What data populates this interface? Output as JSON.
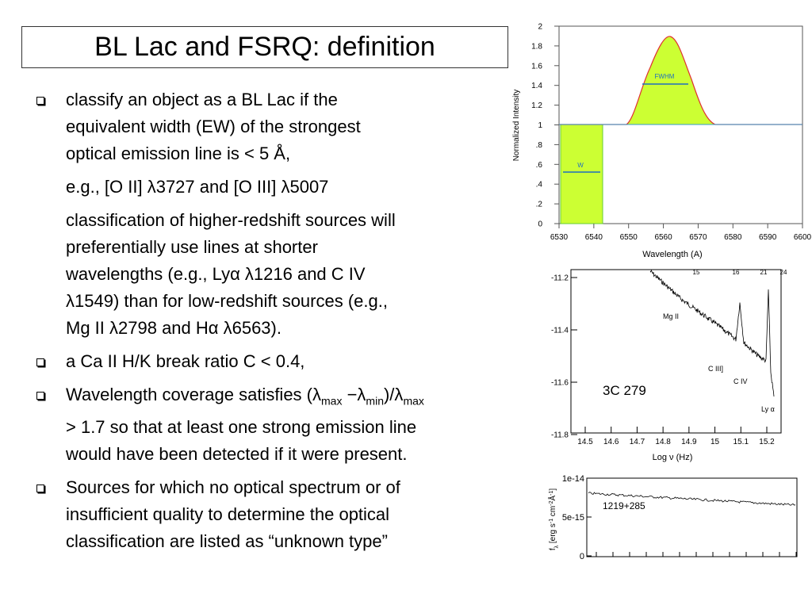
{
  "title": "BL Lac and FSRQ: definition",
  "bullets": [
    {
      "paragraphs": [
        [
          [
            "classify an object as a BL Lac if the"
          ],
          [
            "equivalent width (EW) of the strongest"
          ],
          [
            "optical emission line is < 5 Å,"
          ]
        ],
        [
          [
            "e.g.,  [O II] λ3727 and [O III] λ5007"
          ]
        ],
        [
          [
            "classification of higher-redshift sources will"
          ],
          [
            "preferentially use lines at shorter"
          ],
          [
            "wavelengths (e.g., Lyα λ1216 and C IV"
          ],
          [
            "λ1549) than for low-redshift sources (e.g.,"
          ],
          [
            "Mg II λ2798 and Hα λ6563)."
          ]
        ]
      ]
    },
    {
      "paragraphs": [
        [
          [
            "a Ca II H/K break ratio C < 0.4,"
          ]
        ]
      ]
    },
    {
      "paragraphs": [
        [
          [
            "Wavelength coverage satisfies (λ",
            {
              "sub": "max"
            },
            " −λ",
            {
              "sub": "min"
            },
            ")/λ",
            {
              "sub": "max"
            }
          ],
          [
            "> 1.7 so that at least one strong emission line"
          ],
          [
            "would have been detected if it were present."
          ]
        ]
      ]
    },
    {
      "paragraphs": [
        [
          [
            "Sources for which no optical spectrum or of"
          ],
          [
            "insufficient quality to determine the optical"
          ],
          [
            "classification are listed as “unknown type”"
          ]
        ]
      ]
    }
  ],
  "figures": [
    {
      "ylabel": "Normalized Intensity",
      "xlabel": "Wavelength (A)",
      "yticks": [
        2,
        1.8,
        1.6,
        1.4,
        1.2,
        1,
        {
          "value": 0.8,
          "label": ".8"
        },
        {
          "value": 0.6,
          "label": ".6"
        },
        {
          "value": 0.4,
          "label": ".4"
        },
        {
          "value": 0.2,
          "label": ".2"
        },
        0
      ],
      "xticks": [
        6530,
        6540,
        6550,
        6560,
        6570,
        6580,
        6590,
        6600
      ],
      "annotations": [
        "FWHM",
        "W"
      ]
    },
    {
      "xlabel": "Log ν (Hz)",
      "yticks": [
        -11.2,
        -11.4,
        -11.6,
        -11.8
      ],
      "xticks": [
        14.5,
        14.6,
        14.7,
        14.8,
        14.9,
        15,
        15.1,
        15.2
      ],
      "top_labels": [
        "15",
        "16",
        "21",
        "24"
      ],
      "annotations": [
        "Mg II",
        "C III]",
        "C IV",
        "Ly α"
      ],
      "name": "3C 279"
    },
    {
      "ylabel": [
        "f",
        {
          "sub": "λ"
        },
        " [erg s",
        {
          "sup": "-1"
        },
        " cm",
        {
          "sup": "-2"
        },
        "Å",
        {
          "sup": "-1"
        },
        "]"
      ],
      "yticks": [
        {
          "value": 1e-14,
          "label": "1e-14"
        },
        {
          "value": 5e-15,
          "label": "5e-15"
        },
        0
      ],
      "name": "1219+285"
    }
  ]
}
